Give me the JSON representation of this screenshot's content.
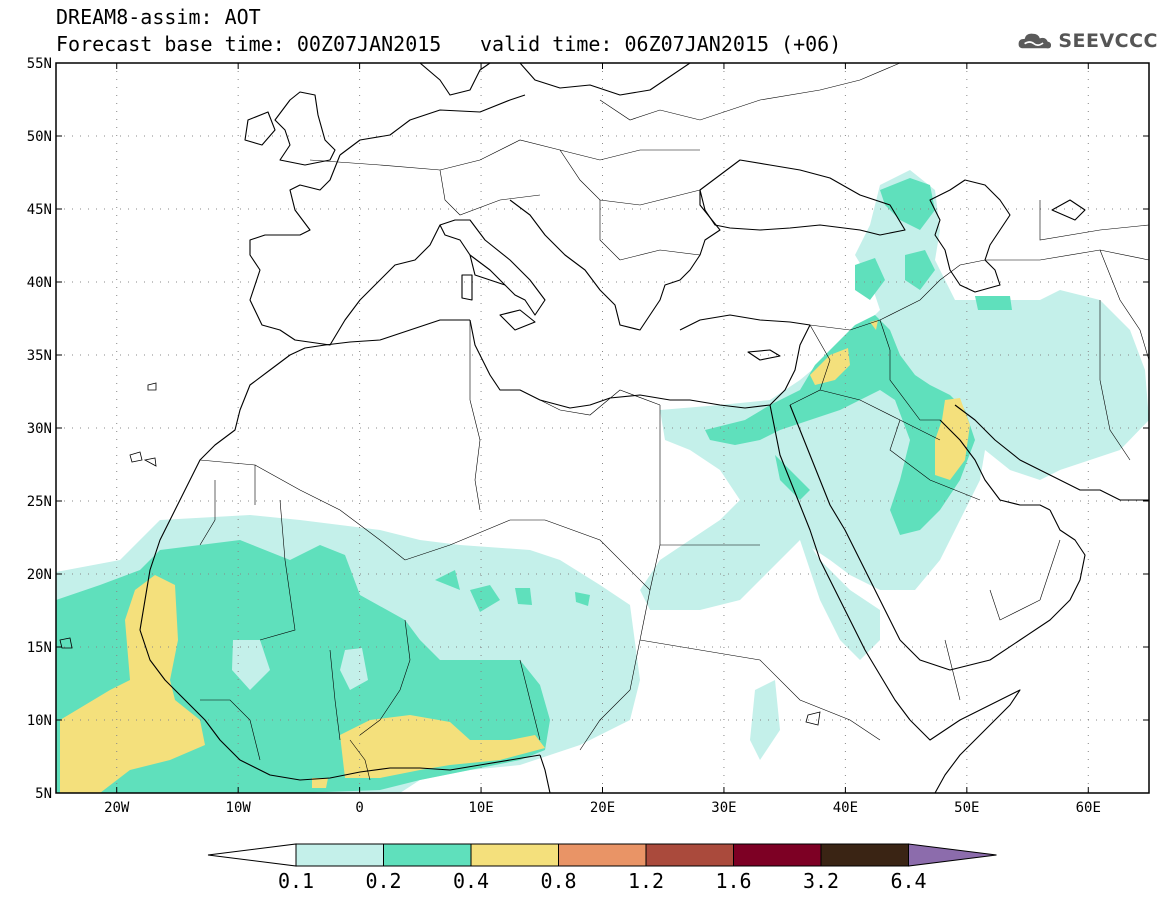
{
  "header": {
    "title": "DREAM8-assim: AOT",
    "base_time": "Forecast base time: 00Z07JAN2015",
    "valid_time": "valid time: 06Z07JAN2015 (+06)"
  },
  "logo": {
    "text": "SEEVCCC",
    "icon": "cloud-icon"
  },
  "map": {
    "region": "North Africa, Europe and Middle East",
    "projection": "lat-lon",
    "lat_labels": [
      "55N",
      "50N",
      "45N",
      "40N",
      "35N",
      "30N",
      "25N",
      "20N",
      "15N",
      "10N",
      "5N"
    ],
    "lon_labels": [
      "20W",
      "10W",
      "0",
      "10E",
      "20E",
      "30E",
      "40E",
      "50E",
      "60E"
    ],
    "grid": "dotted"
  },
  "colorbar": {
    "labels": [
      "0.1",
      "0.2",
      "0.4",
      "0.8",
      "1.2",
      "1.6",
      "3.2",
      "6.4"
    ],
    "colors": [
      "#ffffff",
      "#c4f0ea",
      "#5fe0bc",
      "#f4e07c",
      "#e99466",
      "#aa4a3c",
      "#7d0024",
      "#3a2414",
      "#8c6cac"
    ]
  }
}
